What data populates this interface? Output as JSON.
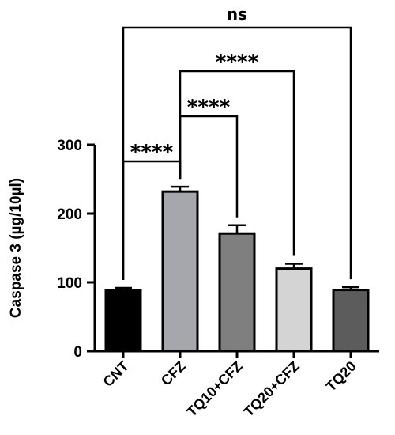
{
  "chart_data": {
    "type": "bar",
    "categories": [
      "CNT",
      "CFZ",
      "TQ10+CFZ",
      "TQ20+CFZ",
      "TQ20"
    ],
    "values": [
      88,
      232,
      171,
      120,
      89
    ],
    "errors": [
      4,
      7,
      12,
      7,
      4
    ],
    "colors": [
      "#000000",
      "#a6a6ad",
      "#7f7f7f",
      "#d4d4d4",
      "#5c5c5c"
    ],
    "ylabel": "Caspase 3 (µg/10µl)",
    "xlabel": "",
    "ylim": [
      0,
      300
    ],
    "yticks": [
      "0",
      "100",
      "200",
      "300"
    ],
    "grid": false,
    "comparisons": [
      {
        "from": "CNT",
        "to": "CFZ",
        "label": "****"
      },
      {
        "from": "CFZ",
        "to": "TQ10+CFZ",
        "label": "****"
      },
      {
        "from": "CFZ",
        "to": "TQ20+CFZ",
        "label": "****"
      },
      {
        "from": "CNT",
        "to": "TQ20",
        "label": "ns"
      }
    ]
  }
}
